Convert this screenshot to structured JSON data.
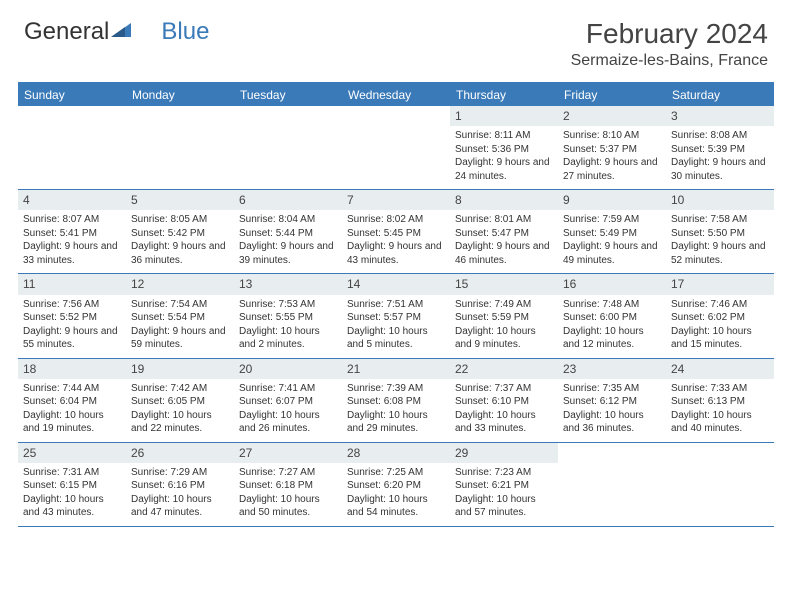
{
  "logo": {
    "text1": "General",
    "text2": "Blue"
  },
  "title": "February 2024",
  "location": "Sermaize-les-Bains, France",
  "colors": {
    "header_bar": "#3a7ab8",
    "daynum_bg": "#e8edf0",
    "text": "#333333",
    "title_text": "#444444"
  },
  "weekdays": [
    "Sunday",
    "Monday",
    "Tuesday",
    "Wednesday",
    "Thursday",
    "Friday",
    "Saturday"
  ],
  "weeks": [
    [
      null,
      null,
      null,
      null,
      {
        "n": "1",
        "sr": "8:11 AM",
        "ss": "5:36 PM",
        "dl": "9 hours and 24 minutes."
      },
      {
        "n": "2",
        "sr": "8:10 AM",
        "ss": "5:37 PM",
        "dl": "9 hours and 27 minutes."
      },
      {
        "n": "3",
        "sr": "8:08 AM",
        "ss": "5:39 PM",
        "dl": "9 hours and 30 minutes."
      }
    ],
    [
      {
        "n": "4",
        "sr": "8:07 AM",
        "ss": "5:41 PM",
        "dl": "9 hours and 33 minutes."
      },
      {
        "n": "5",
        "sr": "8:05 AM",
        "ss": "5:42 PM",
        "dl": "9 hours and 36 minutes."
      },
      {
        "n": "6",
        "sr": "8:04 AM",
        "ss": "5:44 PM",
        "dl": "9 hours and 39 minutes."
      },
      {
        "n": "7",
        "sr": "8:02 AM",
        "ss": "5:45 PM",
        "dl": "9 hours and 43 minutes."
      },
      {
        "n": "8",
        "sr": "8:01 AM",
        "ss": "5:47 PM",
        "dl": "9 hours and 46 minutes."
      },
      {
        "n": "9",
        "sr": "7:59 AM",
        "ss": "5:49 PM",
        "dl": "9 hours and 49 minutes."
      },
      {
        "n": "10",
        "sr": "7:58 AM",
        "ss": "5:50 PM",
        "dl": "9 hours and 52 minutes."
      }
    ],
    [
      {
        "n": "11",
        "sr": "7:56 AM",
        "ss": "5:52 PM",
        "dl": "9 hours and 55 minutes."
      },
      {
        "n": "12",
        "sr": "7:54 AM",
        "ss": "5:54 PM",
        "dl": "9 hours and 59 minutes."
      },
      {
        "n": "13",
        "sr": "7:53 AM",
        "ss": "5:55 PM",
        "dl": "10 hours and 2 minutes."
      },
      {
        "n": "14",
        "sr": "7:51 AM",
        "ss": "5:57 PM",
        "dl": "10 hours and 5 minutes."
      },
      {
        "n": "15",
        "sr": "7:49 AM",
        "ss": "5:59 PM",
        "dl": "10 hours and 9 minutes."
      },
      {
        "n": "16",
        "sr": "7:48 AM",
        "ss": "6:00 PM",
        "dl": "10 hours and 12 minutes."
      },
      {
        "n": "17",
        "sr": "7:46 AM",
        "ss": "6:02 PM",
        "dl": "10 hours and 15 minutes."
      }
    ],
    [
      {
        "n": "18",
        "sr": "7:44 AM",
        "ss": "6:04 PM",
        "dl": "10 hours and 19 minutes."
      },
      {
        "n": "19",
        "sr": "7:42 AM",
        "ss": "6:05 PM",
        "dl": "10 hours and 22 minutes."
      },
      {
        "n": "20",
        "sr": "7:41 AM",
        "ss": "6:07 PM",
        "dl": "10 hours and 26 minutes."
      },
      {
        "n": "21",
        "sr": "7:39 AM",
        "ss": "6:08 PM",
        "dl": "10 hours and 29 minutes."
      },
      {
        "n": "22",
        "sr": "7:37 AM",
        "ss": "6:10 PM",
        "dl": "10 hours and 33 minutes."
      },
      {
        "n": "23",
        "sr": "7:35 AM",
        "ss": "6:12 PM",
        "dl": "10 hours and 36 minutes."
      },
      {
        "n": "24",
        "sr": "7:33 AM",
        "ss": "6:13 PM",
        "dl": "10 hours and 40 minutes."
      }
    ],
    [
      {
        "n": "25",
        "sr": "7:31 AM",
        "ss": "6:15 PM",
        "dl": "10 hours and 43 minutes."
      },
      {
        "n": "26",
        "sr": "7:29 AM",
        "ss": "6:16 PM",
        "dl": "10 hours and 47 minutes."
      },
      {
        "n": "27",
        "sr": "7:27 AM",
        "ss": "6:18 PM",
        "dl": "10 hours and 50 minutes."
      },
      {
        "n": "28",
        "sr": "7:25 AM",
        "ss": "6:20 PM",
        "dl": "10 hours and 54 minutes."
      },
      {
        "n": "29",
        "sr": "7:23 AM",
        "ss": "6:21 PM",
        "dl": "10 hours and 57 minutes."
      },
      null,
      null
    ]
  ],
  "labels": {
    "sunrise": "Sunrise: ",
    "sunset": "Sunset: ",
    "daylight": "Daylight: "
  }
}
